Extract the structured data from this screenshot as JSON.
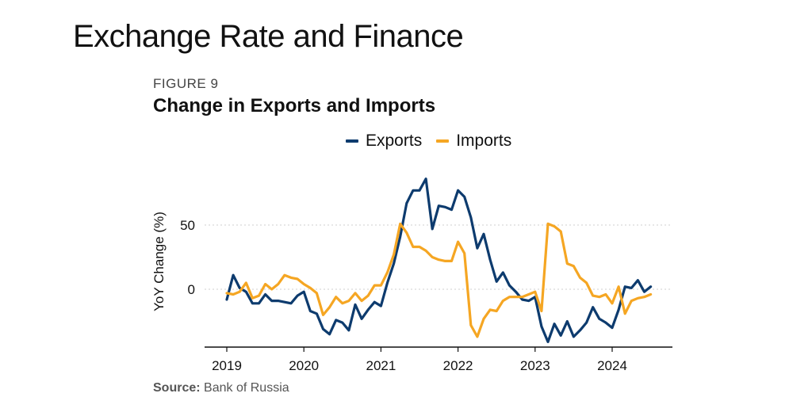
{
  "page": {
    "heading": "Exchange Rate and Finance"
  },
  "chart_data": {
    "type": "line",
    "figure_label": "FIGURE 9",
    "title": "Change in Exports and Imports",
    "ylabel": "YoY Change (%)",
    "xlabel": "",
    "source_label": "Source:",
    "source_text": "Bank of Russia",
    "legend_position": "top-center",
    "grid": "horizontal dotted",
    "ylim": [
      -45,
      92
    ],
    "xlim": [
      2018.9,
      2024.8
    ],
    "y_ticks": [
      0,
      50
    ],
    "x_ticks": [
      2019,
      2020,
      2021,
      2022,
      2023,
      2024
    ],
    "series": [
      {
        "name": "Exports",
        "color": "#0d3b6e",
        "x": [
          2019.0,
          2019.083,
          2019.167,
          2019.25,
          2019.333,
          2019.417,
          2019.5,
          2019.583,
          2019.667,
          2019.75,
          2019.833,
          2019.917,
          2020.0,
          2020.083,
          2020.167,
          2020.25,
          2020.333,
          2020.417,
          2020.5,
          2020.583,
          2020.667,
          2020.75,
          2020.833,
          2020.917,
          2021.0,
          2021.083,
          2021.167,
          2021.25,
          2021.333,
          2021.417,
          2021.5,
          2021.583,
          2021.667,
          2021.75,
          2021.833,
          2021.917,
          2022.0,
          2022.083,
          2022.167,
          2022.25,
          2022.333,
          2022.417,
          2022.5,
          2022.583,
          2022.667,
          2022.75,
          2022.833,
          2022.917,
          2023.0,
          2023.083,
          2023.167,
          2023.25,
          2023.333,
          2023.417,
          2023.5,
          2023.583,
          2023.667,
          2023.75,
          2023.833,
          2023.917,
          2024.0,
          2024.083,
          2024.167,
          2024.25,
          2024.333,
          2024.417,
          2024.5
        ],
        "values": [
          -8,
          11,
          1,
          -2,
          -11,
          -11,
          -4,
          -9,
          -9,
          -10,
          -11,
          -5,
          -2,
          -17,
          -19,
          -31,
          -35,
          -24,
          -26,
          -32,
          -12,
          -23,
          -16,
          -10,
          -13,
          5,
          20,
          41,
          67,
          77,
          77,
          86,
          47,
          65,
          64,
          62,
          77,
          72,
          56,
          32,
          43,
          23,
          6,
          13,
          3,
          -2,
          -8,
          -9,
          -6,
          -29,
          -41,
          -27,
          -36,
          -25,
          -37,
          -32,
          -26,
          -14,
          -23,
          -26,
          -30,
          -16,
          2,
          1,
          7,
          -2,
          2
        ]
      },
      {
        "name": "Imports",
        "color": "#f5a623",
        "x": [
          2019.0,
          2019.083,
          2019.167,
          2019.25,
          2019.333,
          2019.417,
          2019.5,
          2019.583,
          2019.667,
          2019.75,
          2019.833,
          2019.917,
          2020.0,
          2020.083,
          2020.167,
          2020.25,
          2020.333,
          2020.417,
          2020.5,
          2020.583,
          2020.667,
          2020.75,
          2020.833,
          2020.917,
          2021.0,
          2021.083,
          2021.167,
          2021.25,
          2021.333,
          2021.417,
          2021.5,
          2021.583,
          2021.667,
          2021.75,
          2021.833,
          2021.917,
          2022.0,
          2022.083,
          2022.167,
          2022.25,
          2022.333,
          2022.417,
          2022.5,
          2022.583,
          2022.667,
          2022.75,
          2022.833,
          2022.917,
          2023.0,
          2023.083,
          2023.167,
          2023.25,
          2023.333,
          2023.417,
          2023.5,
          2023.583,
          2023.667,
          2023.75,
          2023.833,
          2023.917,
          2024.0,
          2024.083,
          2024.167,
          2024.25,
          2024.333,
          2024.417,
          2024.5
        ],
        "values": [
          -3,
          -4,
          -2,
          5,
          -7,
          -5,
          4,
          0,
          4,
          11,
          9,
          8,
          4,
          1,
          -3,
          -20,
          -14,
          -6,
          -11,
          -9,
          -3,
          -9,
          -5,
          3,
          3,
          13,
          27,
          51,
          44,
          33,
          33,
          30,
          25,
          23,
          22,
          22,
          37,
          28,
          -28,
          -37,
          -23,
          -16,
          -17,
          -9,
          -6,
          -6,
          -6,
          -4,
          -2,
          -17,
          51,
          49,
          45,
          20,
          18,
          9,
          5,
          -5,
          -6,
          -4,
          -11,
          2,
          -19,
          -9,
          -7,
          -6,
          -4
        ]
      }
    ]
  }
}
